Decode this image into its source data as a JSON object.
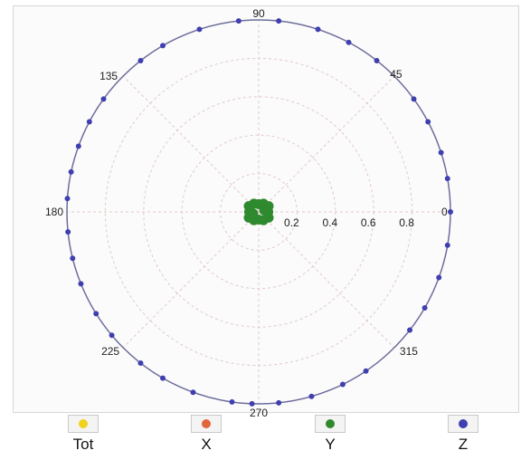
{
  "chart_data": {
    "type": "polar-scatter",
    "title": "",
    "angle_ticks": [
      {
        "deg": 0,
        "label": "0"
      },
      {
        "deg": 45,
        "label": "45"
      },
      {
        "deg": 90,
        "label": "90"
      },
      {
        "deg": 135,
        "label": "135"
      },
      {
        "deg": 180,
        "label": "180"
      },
      {
        "deg": 225,
        "label": "225"
      },
      {
        "deg": 270,
        "label": "270"
      },
      {
        "deg": 315,
        "label": "315"
      }
    ],
    "radius_ticks": [
      "0.2",
      "0.4",
      "0.6",
      "0.8"
    ],
    "rlim": [
      0,
      1
    ],
    "grid": true,
    "legend_position": "bottom",
    "series": [
      {
        "name": "Tot",
        "color": "#f2d21b",
        "points": []
      },
      {
        "name": "X",
        "color": "#e2663c",
        "points": []
      },
      {
        "name": "Y",
        "color": "#2f8a2f",
        "points": [
          [
            0,
            0.05
          ],
          [
            30,
            0.06
          ],
          [
            60,
            0.05
          ],
          [
            90,
            0.04
          ],
          [
            120,
            0.05
          ],
          [
            150,
            0.06
          ],
          [
            180,
            0.05
          ],
          [
            210,
            0.06
          ],
          [
            240,
            0.05
          ],
          [
            270,
            0.04
          ],
          [
            300,
            0.05
          ],
          [
            330,
            0.06
          ],
          [
            15,
            0.03
          ],
          [
            195,
            0.03
          ]
        ]
      },
      {
        "name": "Z",
        "color": "#3f3fb0",
        "points": [
          [
            0,
            1.0
          ],
          [
            10,
            1.0
          ],
          [
            18,
            1.0
          ],
          [
            28,
            1.0
          ],
          [
            36,
            1.0
          ],
          [
            52,
            1.0
          ],
          [
            62,
            1.0
          ],
          [
            72,
            1.0
          ],
          [
            84,
            1.0
          ],
          [
            96,
            1.0
          ],
          [
            108,
            1.0
          ],
          [
            120,
            1.0
          ],
          [
            128,
            1.0
          ],
          [
            144,
            1.0
          ],
          [
            152,
            1.0
          ],
          [
            160,
            1.0
          ],
          [
            168,
            1.0
          ],
          [
            176,
            1.0
          ],
          [
            186,
            1.0
          ],
          [
            194,
            1.0
          ],
          [
            202,
            1.0
          ],
          [
            212,
            1.0
          ],
          [
            220,
            1.0
          ],
          [
            232,
            1.0
          ],
          [
            240,
            1.0
          ],
          [
            250,
            1.0
          ],
          [
            262,
            1.0
          ],
          [
            268,
            1.0
          ],
          [
            276,
            1.0
          ],
          [
            286,
            1.0
          ],
          [
            296,
            1.0
          ],
          [
            304,
            1.0
          ],
          [
            322,
            1.0
          ],
          [
            330,
            1.0
          ],
          [
            340,
            1.0
          ],
          [
            350,
            1.0
          ]
        ]
      }
    ]
  }
}
